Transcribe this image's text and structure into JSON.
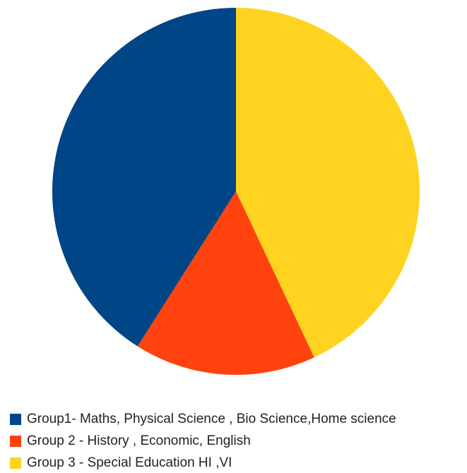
{
  "chart_data": {
    "type": "pie",
    "series": [
      {
        "slices": [
          {
            "label": "Group 3 - Special Education HI ,VI",
            "value": 43,
            "color": "#ffd320"
          },
          {
            "label": "Group 2 - History , Economic, English",
            "value": 16,
            "color": "#ff420e"
          },
          {
            "label": "Group1- Maths, Physical Science , Bio Science,Home science",
            "value": 41,
            "color": "#004586"
          }
        ]
      }
    ],
    "legend": {
      "placement": "bottom-left",
      "entries": [
        {
          "label": "Group1- Maths, Physical Science , Bio Science,Home science",
          "color": "#004586"
        },
        {
          "label": "Group 2 - History , Economic, English",
          "color": "#ff420e"
        },
        {
          "label": "Group 3 - Special Education HI ,VI",
          "color": "#ffd320"
        }
      ]
    }
  }
}
